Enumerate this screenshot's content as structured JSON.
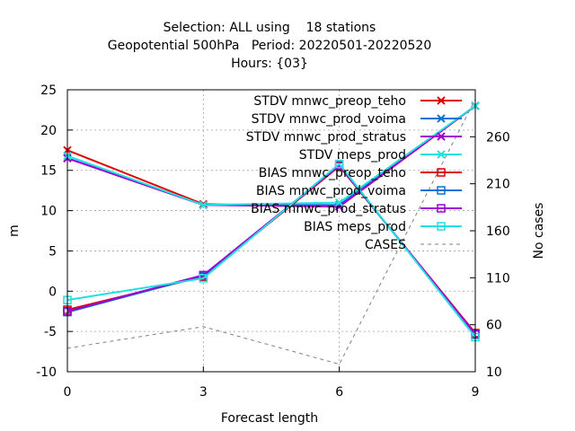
{
  "chart_data": {
    "type": "line",
    "title_lines": [
      "Selection: ALL using    18 stations",
      "Geopotential 500hPa   Period: 20220501-20220520",
      "Hours: {03}"
    ],
    "xlabel": "Forecast length",
    "ylabel": "m",
    "y2label": "No cases",
    "x": [
      0,
      3,
      6,
      9
    ],
    "xticks": [
      "0",
      "3",
      "6",
      "9"
    ],
    "ylim": [
      -10,
      25
    ],
    "yticks": [
      "-10",
      "-5",
      "0",
      "5",
      "10",
      "15",
      "20",
      "25"
    ],
    "y2lim": [
      10,
      310
    ],
    "y2ticks": [
      "10",
      "60",
      "110",
      "160",
      "210",
      "260"
    ],
    "grid": true,
    "legend_position": "top-right",
    "series": [
      {
        "name": "STDV mnwc_preop_teho",
        "color": "#e00000",
        "marker": "x",
        "values": [
          17.5,
          10.8,
          10.5,
          23.0
        ]
      },
      {
        "name": "STDV mnwc_prod_voima",
        "color": "#0a72d4",
        "marker": "x",
        "values": [
          16.5,
          10.7,
          10.7,
          23.0
        ]
      },
      {
        "name": "STDV mnwc_prod_stratus",
        "color": "#a000d0",
        "marker": "x",
        "values": [
          16.5,
          10.7,
          10.5,
          23.0
        ]
      },
      {
        "name": "STDV meps_prod",
        "color": "#20e0e0",
        "marker": "x",
        "values": [
          16.8,
          10.7,
          11.0,
          23.0
        ]
      },
      {
        "name": "BIAS mnwc_preop_teho",
        "color": "#e00000",
        "marker": "square",
        "values": [
          -2.3,
          1.8,
          15.5,
          -5.2
        ]
      },
      {
        "name": "BIAS mnwc_prod_voima",
        "color": "#0a72d4",
        "marker": "square",
        "values": [
          -2.6,
          1.9,
          15.6,
          -5.4
        ]
      },
      {
        "name": "BIAS mnwc_prod_stratus",
        "color": "#a000d0",
        "marker": "square",
        "values": [
          -2.5,
          2.0,
          15.6,
          -5.3
        ]
      },
      {
        "name": "BIAS meps_prod",
        "color": "#20e0e0",
        "marker": "square",
        "values": [
          -1.1,
          1.6,
          15.8,
          -5.7
        ]
      },
      {
        "name": "CASES",
        "color": "#808080",
        "marker": "none",
        "dashed": true,
        "axis": "y2",
        "values": [
          35,
          58,
          18,
          300
        ]
      }
    ]
  }
}
